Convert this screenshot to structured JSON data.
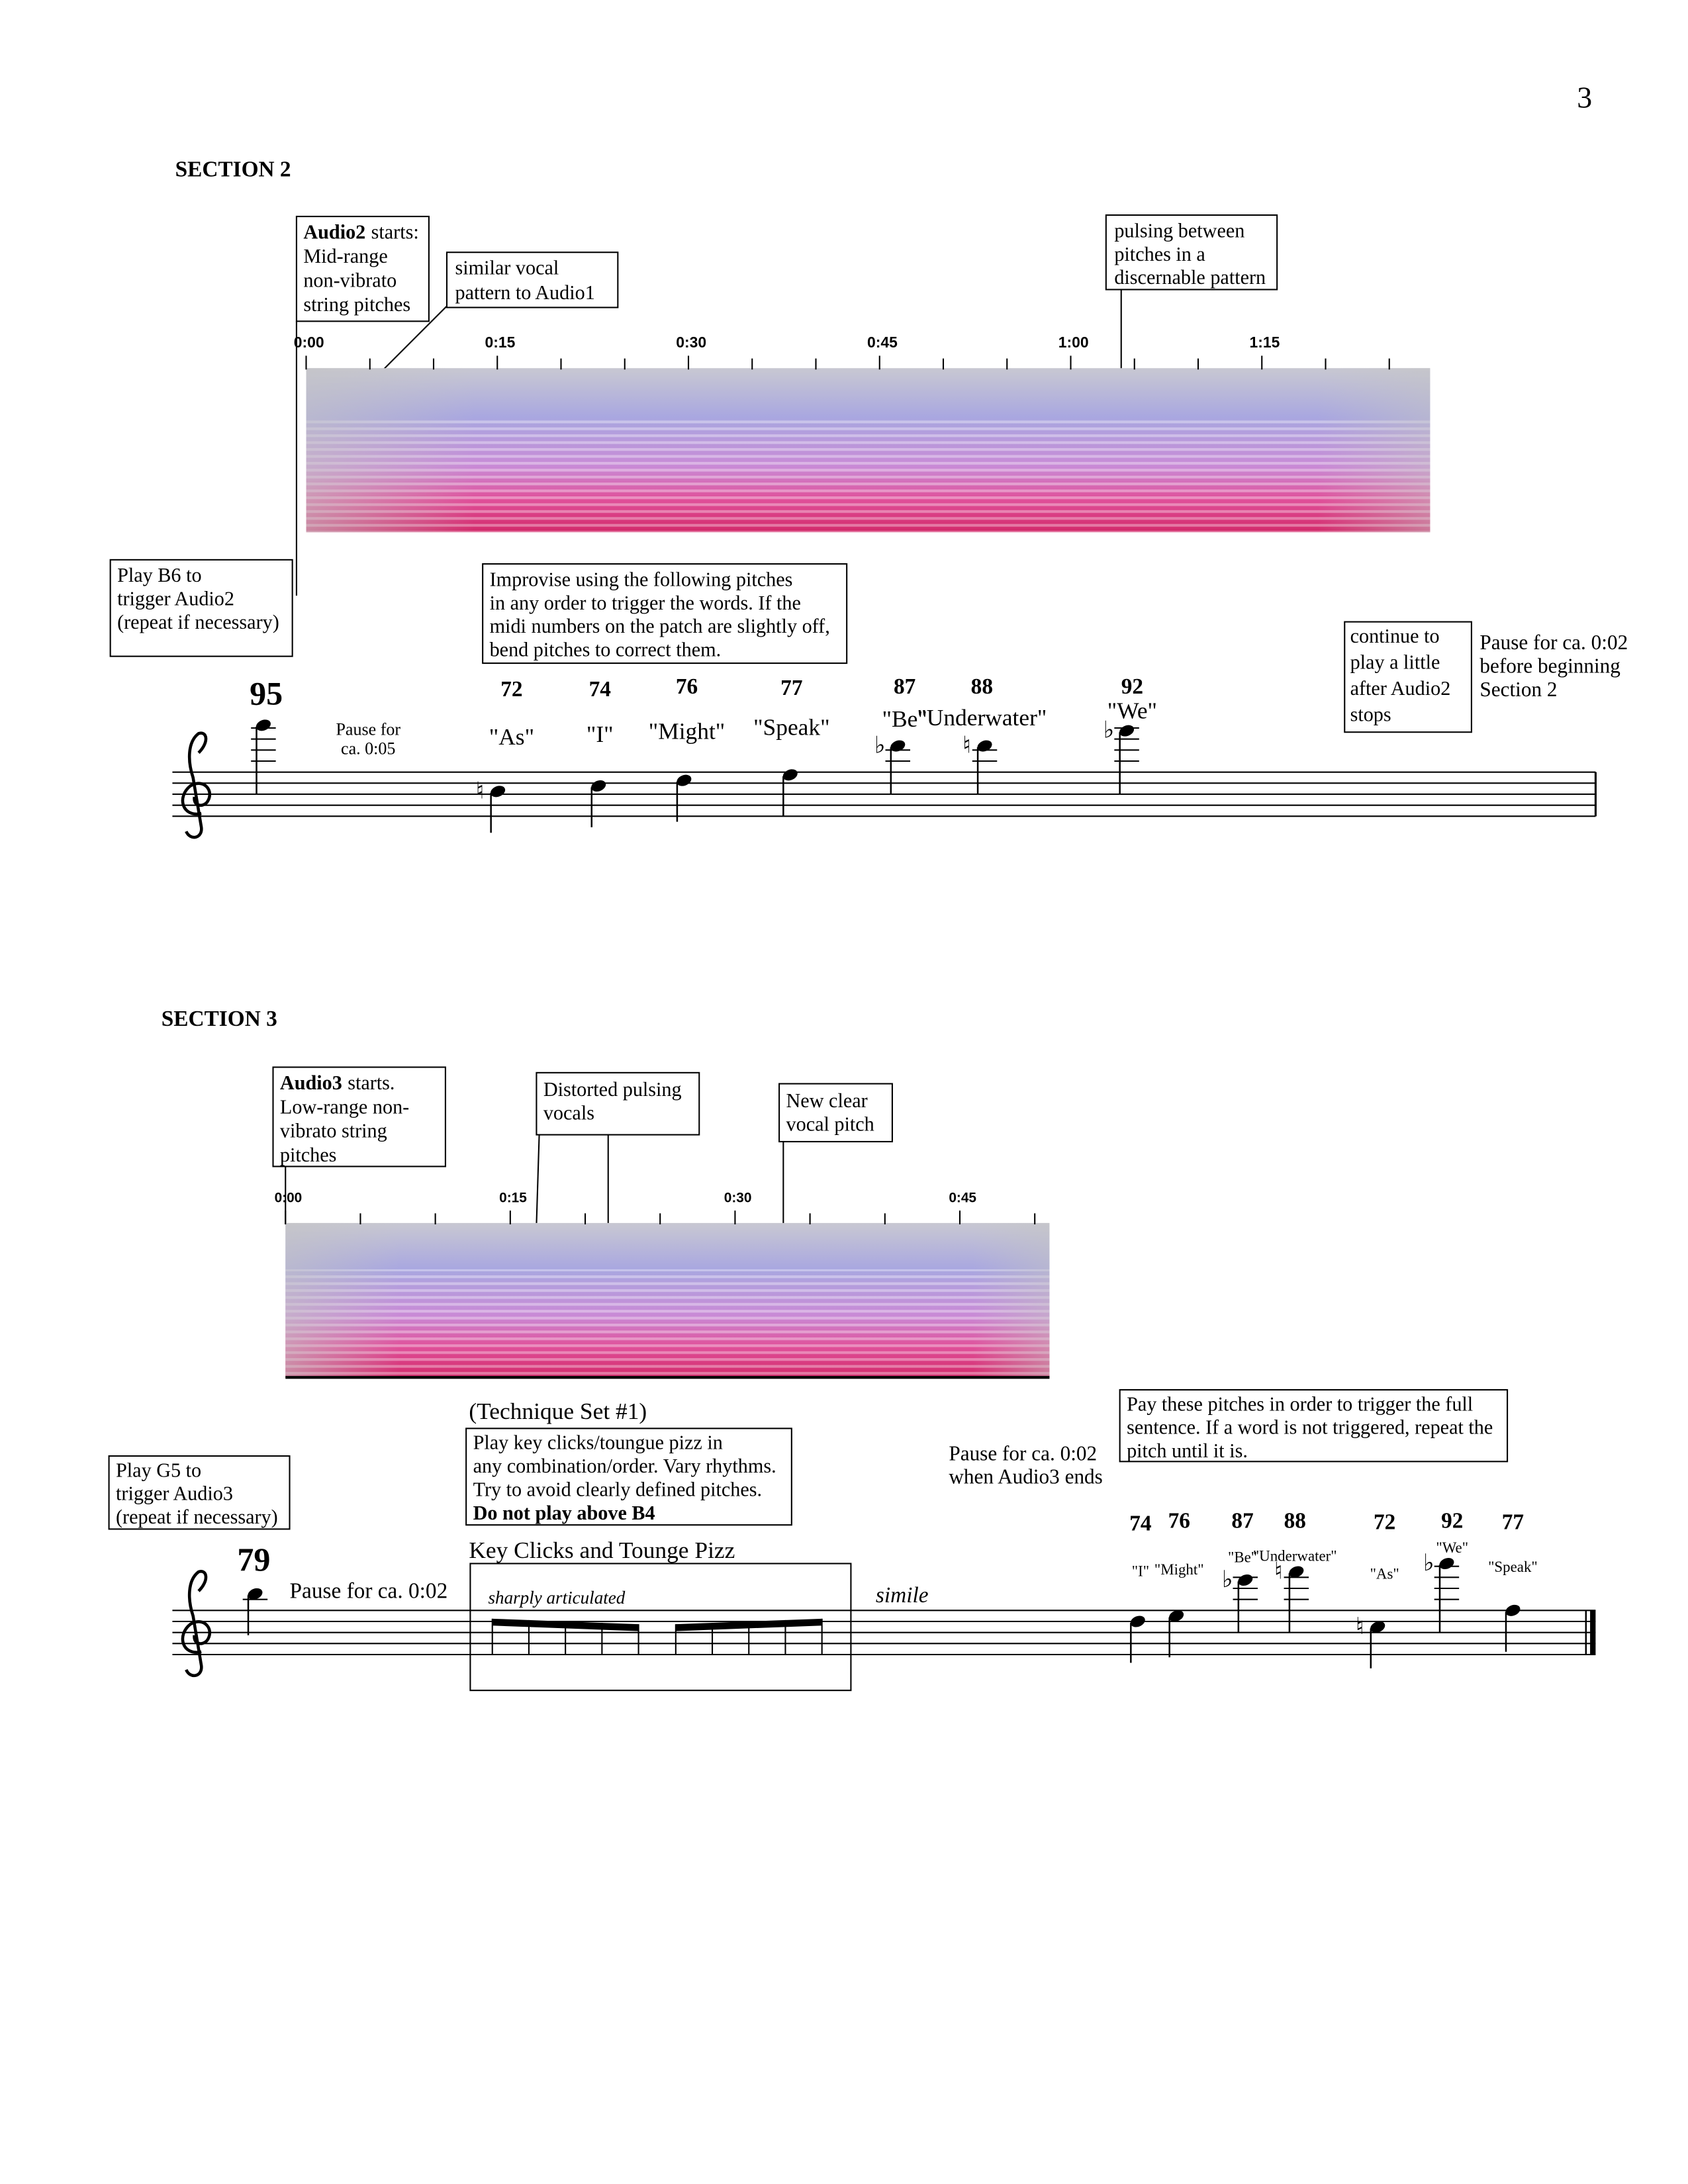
{
  "page_number": "3",
  "section2": {
    "heading": "SECTION 2",
    "audio_note": {
      "bold": "Audio2",
      "lines": [
        "starts:",
        "Mid-range",
        "non-vibrato",
        "string pitches"
      ]
    },
    "timeline": [
      "0:00",
      "0:15",
      "0:30",
      "0:45",
      "1:00",
      "1:15"
    ],
    "similar_note": [
      "similar vocal",
      "pattern to Audio1"
    ],
    "pulsing_note": [
      "pulsing between",
      "pitches in a",
      "discernable pattern"
    ],
    "trigger_note": [
      "Play B6 to",
      "trigger Audio2",
      "(repeat if necessary)"
    ],
    "improvise_note": [
      "Improvise using the following pitches",
      "in any order to trigger the words. If the",
      "midi numbers on the patch are slightly off,",
      "bend pitches to correct them."
    ],
    "continue_note": [
      "continue to",
      "play a little",
      "after Audio2",
      "stops"
    ],
    "pause_end": [
      "Pause for ca. 0:02",
      "before beginning",
      "Section 2"
    ],
    "start_note": {
      "midi": 95,
      "pause": [
        "Pause for",
        "ca. 0:05"
      ]
    },
    "pitches": [
      {
        "midi": 72,
        "word": "\"As\""
      },
      {
        "midi": 74,
        "word": "\"I\""
      },
      {
        "midi": 76,
        "word": "\"Might\""
      },
      {
        "midi": 77,
        "word": "\"Speak\""
      },
      {
        "midi": 87,
        "word": "\"Be\""
      },
      {
        "midi": 88,
        "word": "\"Underwater\""
      },
      {
        "midi": 92,
        "word": "\"We\""
      }
    ]
  },
  "section3": {
    "heading": "SECTION 3",
    "audio_note": {
      "bold": "Audio3",
      "lines": [
        "starts.",
        "Low-range non-",
        "vibrato string",
        "pitches"
      ]
    },
    "timeline": [
      "0:00",
      "0:15",
      "0:30",
      "0:45"
    ],
    "distorted_note": [
      "Distorted pulsing",
      "vocals"
    ],
    "clear_note": [
      "New clear",
      "vocal pitch"
    ],
    "technique_heading": "(Technique Set #1)",
    "technique_note": {
      "lines": [
        "Play key clicks/toungue pizz in",
        "any combination/order. Vary rhythms.",
        "Try to avoid clearly defined pitches."
      ],
      "bold_line": "Do not play above B4"
    },
    "trigger_note": [
      "Play G5 to",
      "trigger Audio3",
      "(repeat if necessary)"
    ],
    "start_note": {
      "midi": 79,
      "pause": "Pause for ca. 0:02"
    },
    "box_title": "Key Clicks and Tounge Pizz",
    "box_direction": "sharply articulated",
    "simile": "simile",
    "pause_end": [
      "Pause for ca. 0:02",
      "when Audio3 ends"
    ],
    "order_note": [
      "Pay these pitches in order to trigger the full",
      "sentence. If a word is not triggered, repeat the",
      "pitch until it is."
    ],
    "pitches": [
      {
        "midi": 74,
        "word": "\"I\""
      },
      {
        "midi": 76,
        "word": "\"Might\""
      },
      {
        "midi": 87,
        "word": "\"Be\""
      },
      {
        "midi": 88,
        "word": "\"Underwater\""
      },
      {
        "midi": 72,
        "word": "\"As\""
      },
      {
        "midi": 92,
        "word": "\"We\""
      },
      {
        "midi": 77,
        "word": "\"Speak\""
      }
    ]
  }
}
